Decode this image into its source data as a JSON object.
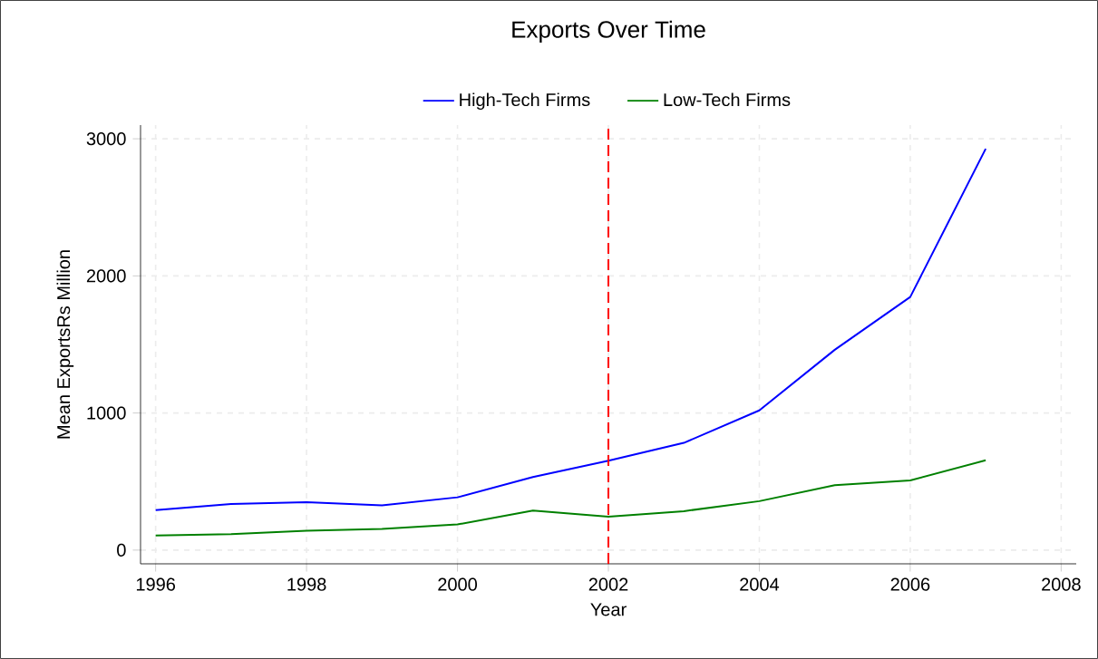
{
  "chart_data": {
    "type": "line",
    "title": "Exports Over Time",
    "xlabel": "Year",
    "ylabel": "Mean ExportsRs Million",
    "x": [
      1996,
      1997,
      1998,
      1999,
      2000,
      2001,
      2002,
      2003,
      2004,
      2005,
      2006,
      2007
    ],
    "series": [
      {
        "name": "High-Tech Firms",
        "color": "#0000ff",
        "values": [
          291,
          337,
          350,
          326,
          385,
          533,
          652,
          782,
          1019,
          1461,
          1846,
          2927
        ]
      },
      {
        "name": "Low-Tech Firms",
        "color": "#008000",
        "values": [
          106,
          117,
          141,
          154,
          187,
          289,
          243,
          284,
          357,
          473,
          508,
          655
        ]
      }
    ],
    "xlim": [
      1995.8,
      2008.2
    ],
    "ylim": [
      -100,
      3100
    ],
    "xticks": [
      1996,
      1998,
      2000,
      2002,
      2004,
      2006,
      2008
    ],
    "yticks": [
      0,
      1000,
      2000,
      3000
    ],
    "ref_lines": [
      {
        "axis": "x",
        "value": 2002,
        "color": "#ff0000",
        "line_style": "dashed"
      }
    ],
    "grid": true,
    "legend": "top",
    "marker": "none",
    "line_style": "solid"
  }
}
